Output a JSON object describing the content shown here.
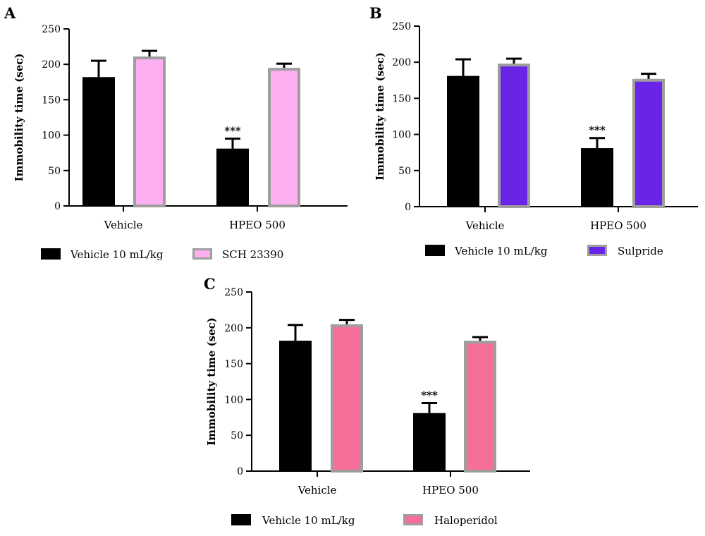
{
  "chart_data": [
    {
      "panel_letter": "A",
      "type": "bar",
      "ylabel": "Immobility time (sec)",
      "ylim": [
        0,
        250
      ],
      "yticks": [
        0,
        50,
        100,
        150,
        200,
        250
      ],
      "categories": [
        "Vehicle",
        "HPEO 500"
      ],
      "series": [
        {
          "name": "Vehicle 10 mL/kg",
          "color": "#000000",
          "edge": "#000000",
          "values": [
            182,
            81
          ],
          "errors": [
            23,
            14
          ]
        },
        {
          "name": "SCH 23390",
          "color": "#fbaef0",
          "edge": "#9e9e9e",
          "values": [
            211,
            195
          ],
          "errors": [
            8,
            6
          ]
        }
      ],
      "annotations": [
        {
          "text": "***",
          "series": 0,
          "category": 1
        }
      ],
      "legend": "bottom"
    },
    {
      "panel_letter": "B",
      "type": "bar",
      "ylabel": "Immobility time (sec)",
      "ylim": [
        0,
        250
      ],
      "yticks": [
        0,
        50,
        100,
        150,
        200,
        250
      ],
      "categories": [
        "Vehicle",
        "HPEO 500"
      ],
      "series": [
        {
          "name": "Vehicle 10 mL/kg",
          "color": "#000000",
          "edge": "#000000",
          "values": [
            181,
            81
          ],
          "errors": [
            23,
            14
          ]
        },
        {
          "name": "Sulpride",
          "color": "#6a24e8",
          "edge": "#9e9e9e",
          "values": [
            198,
            177
          ],
          "errors": [
            7,
            7
          ]
        }
      ],
      "annotations": [
        {
          "text": "***",
          "series": 0,
          "category": 1
        }
      ],
      "legend": "bottom"
    },
    {
      "panel_letter": "C",
      "type": "bar",
      "ylabel": "Immobility time (sec)",
      "ylim": [
        0,
        250
      ],
      "yticks": [
        0,
        50,
        100,
        150,
        200,
        250
      ],
      "categories": [
        "Vehicle",
        "HPEO 500"
      ],
      "series": [
        {
          "name": "Vehicle 10 mL/kg",
          "color": "#000000",
          "edge": "#000000",
          "values": [
            182,
            81
          ],
          "errors": [
            22,
            14
          ]
        },
        {
          "name": "Haloperidol",
          "color": "#f56f99",
          "edge": "#9e9e9e",
          "values": [
            205,
            182
          ],
          "errors": [
            6,
            5
          ]
        }
      ],
      "annotations": [
        {
          "text": "***",
          "series": 0,
          "category": 1
        }
      ],
      "legend": "bottom"
    }
  ]
}
